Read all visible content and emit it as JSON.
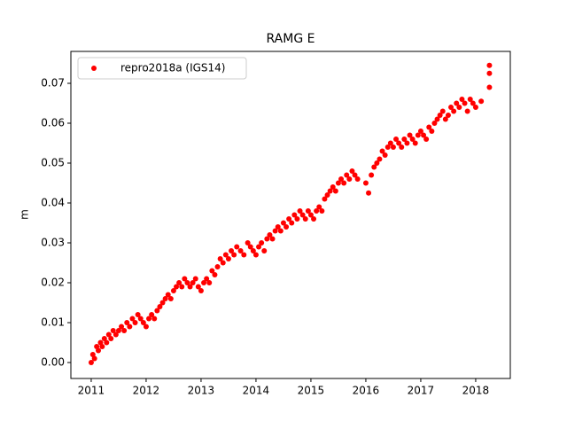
{
  "chart_data": {
    "type": "scatter",
    "title": "RAMG E",
    "y_label": "m",
    "series": [
      {
        "name": "repro2018a (IGS14)",
        "color": "#ff0000",
        "x": [
          2011.0,
          2011.03,
          2011.06,
          2011.1,
          2011.13,
          2011.17,
          2011.2,
          2011.24,
          2011.28,
          2011.32,
          2011.36,
          2011.4,
          2011.45,
          2011.5,
          2011.55,
          2011.6,
          2011.65,
          2011.7,
          2011.75,
          2011.8,
          2011.85,
          2011.9,
          2011.95,
          2012.0,
          2012.05,
          2012.1,
          2012.15,
          2012.2,
          2012.25,
          2012.3,
          2012.35,
          2012.4,
          2012.45,
          2012.5,
          2012.55,
          2012.6,
          2012.65,
          2012.7,
          2012.75,
          2012.8,
          2012.85,
          2012.9,
          2012.95,
          2013.0,
          2013.05,
          2013.1,
          2013.15,
          2013.2,
          2013.25,
          2013.3,
          2013.35,
          2013.4,
          2013.45,
          2013.5,
          2013.55,
          2013.6,
          2013.65,
          2013.72,
          2013.78,
          2013.85,
          2013.9,
          2013.95,
          2014.0,
          2014.05,
          2014.1,
          2014.15,
          2014.2,
          2014.25,
          2014.3,
          2014.35,
          2014.4,
          2014.45,
          2014.5,
          2014.55,
          2014.6,
          2014.65,
          2014.7,
          2014.75,
          2014.8,
          2014.85,
          2014.9,
          2014.95,
          2015.0,
          2015.05,
          2015.1,
          2015.15,
          2015.2,
          2015.25,
          2015.3,
          2015.35,
          2015.4,
          2015.45,
          2015.5,
          2015.55,
          2015.6,
          2015.65,
          2015.7,
          2015.75,
          2015.8,
          2015.85,
          2016.0,
          2016.05,
          2016.1,
          2016.15,
          2016.2,
          2016.25,
          2016.3,
          2016.35,
          2016.4,
          2016.45,
          2016.5,
          2016.55,
          2016.6,
          2016.65,
          2016.7,
          2016.75,
          2016.8,
          2016.85,
          2016.9,
          2016.95,
          2017.0,
          2017.05,
          2017.1,
          2017.15,
          2017.2,
          2017.25,
          2017.3,
          2017.35,
          2017.4,
          2017.45,
          2017.5,
          2017.55,
          2017.6,
          2017.65,
          2017.7,
          2017.75,
          2017.8,
          2017.85,
          2017.9,
          2017.95,
          2018.0,
          2018.1,
          2018.25,
          2018.25,
          2018.25
        ],
        "values": [
          0.0,
          0.002,
          0.001,
          0.004,
          0.003,
          0.005,
          0.004,
          0.006,
          0.005,
          0.007,
          0.006,
          0.008,
          0.007,
          0.008,
          0.009,
          0.008,
          0.01,
          0.009,
          0.011,
          0.01,
          0.012,
          0.011,
          0.01,
          0.009,
          0.011,
          0.012,
          0.011,
          0.013,
          0.014,
          0.015,
          0.016,
          0.017,
          0.016,
          0.018,
          0.019,
          0.02,
          0.019,
          0.021,
          0.02,
          0.019,
          0.02,
          0.021,
          0.019,
          0.018,
          0.02,
          0.021,
          0.02,
          0.023,
          0.022,
          0.024,
          0.026,
          0.025,
          0.027,
          0.026,
          0.028,
          0.027,
          0.029,
          0.028,
          0.027,
          0.03,
          0.029,
          0.028,
          0.027,
          0.029,
          0.03,
          0.028,
          0.031,
          0.032,
          0.031,
          0.033,
          0.034,
          0.033,
          0.035,
          0.034,
          0.036,
          0.035,
          0.037,
          0.036,
          0.038,
          0.037,
          0.036,
          0.038,
          0.037,
          0.036,
          0.038,
          0.039,
          0.038,
          0.041,
          0.042,
          0.043,
          0.044,
          0.043,
          0.045,
          0.046,
          0.045,
          0.047,
          0.046,
          0.048,
          0.047,
          0.046,
          0.045,
          0.0425,
          0.047,
          0.049,
          0.05,
          0.051,
          0.053,
          0.052,
          0.054,
          0.055,
          0.054,
          0.056,
          0.055,
          0.054,
          0.056,
          0.055,
          0.057,
          0.056,
          0.055,
          0.057,
          0.058,
          0.057,
          0.056,
          0.059,
          0.058,
          0.06,
          0.061,
          0.062,
          0.063,
          0.061,
          0.062,
          0.064,
          0.063,
          0.065,
          0.064,
          0.066,
          0.065,
          0.063,
          0.066,
          0.065,
          0.064,
          0.0655,
          0.0745,
          0.0725,
          0.069
        ]
      }
    ],
    "xlim": [
      2010.63,
      2018.63
    ],
    "xticks": [
      2011,
      2012,
      2013,
      2014,
      2015,
      2016,
      2017,
      2018
    ],
    "ylim": [
      -0.004,
      0.078
    ],
    "yticks": [
      {
        "value": 0,
        "label": "0.00"
      },
      0.01,
      0.02,
      0.03,
      0.04,
      0.05,
      0.06,
      0.07
    ],
    "legend": "upper left",
    "grid": false
  }
}
